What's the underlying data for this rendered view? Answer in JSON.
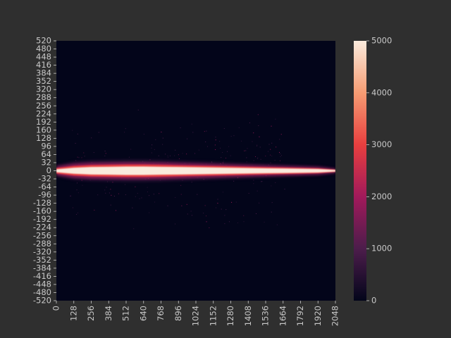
{
  "chart_data": {
    "type": "heatmap",
    "title": "",
    "xlabel": "",
    "ylabel": "",
    "x_ticks": [
      0,
      128,
      256,
      384,
      512,
      640,
      768,
      896,
      1024,
      1152,
      1280,
      1408,
      1536,
      1664,
      1792,
      1920,
      2048
    ],
    "y_ticks": [
      520,
      480,
      448,
      416,
      384,
      352,
      320,
      288,
      256,
      224,
      192,
      160,
      128,
      96,
      64,
      32,
      0,
      -32,
      -64,
      -96,
      -128,
      -160,
      -192,
      -224,
      -256,
      -288,
      -320,
      -352,
      -384,
      -416,
      -448,
      -480,
      -520
    ],
    "xlim": [
      0,
      2048
    ],
    "ylim": [
      -520,
      520
    ],
    "colorbar": {
      "min": 0,
      "max": 5000,
      "ticks": [
        0,
        1000,
        2000,
        3000,
        4000,
        5000
      ],
      "colormap": "rocket",
      "colors": [
        "#03051a",
        "#4c1d4b",
        "#a11a5b",
        "#e83f3f",
        "#f69c73",
        "#faebdd"
      ]
    },
    "band": {
      "description_x": [
        0,
        128,
        256,
        384,
        512,
        640,
        768,
        896,
        1024,
        1152,
        1280,
        1408,
        1536,
        1664,
        1792,
        1920,
        2048
      ],
      "core_halfwidth": [
        6,
        12,
        15,
        16,
        17,
        17,
        16,
        15,
        14,
        13,
        12,
        11,
        10,
        9,
        8,
        7,
        3
      ],
      "glow_halfwidth": [
        16,
        26,
        30,
        31,
        32,
        32,
        31,
        29,
        27,
        25,
        23,
        21,
        19,
        17,
        15,
        13,
        6
      ],
      "peak_value": 5000
    }
  },
  "colors": {
    "figure_bg": "#2f2f2f",
    "text": "#c9c9c9"
  }
}
